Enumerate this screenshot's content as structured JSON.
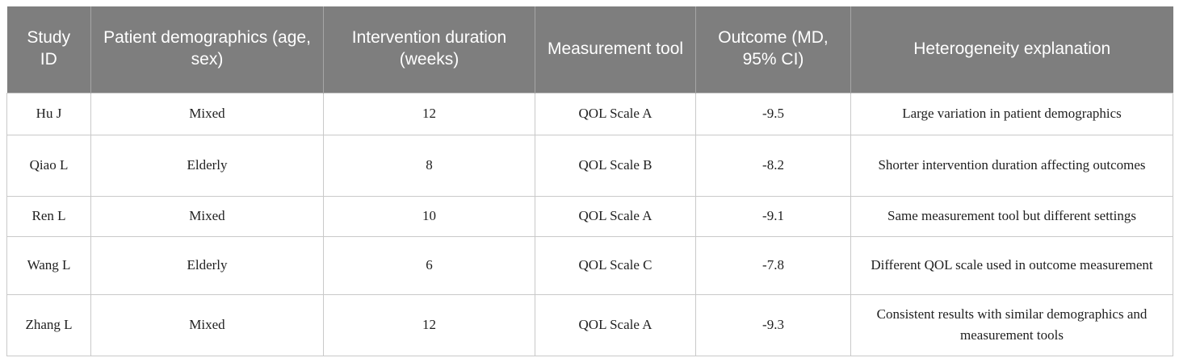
{
  "chart_data": {
    "type": "table",
    "columns": [
      "Study\nID",
      "Patient\ndemographics (age,\nsex)",
      "Intervention\nduration (weeks)",
      "Measurement\ntool",
      "Outcome\n(MD, 95% CI)",
      "Heterogeneity explanation"
    ],
    "rows": [
      [
        "Hu J",
        "Mixed",
        "12",
        "QOL Scale A",
        "-9.5",
        "Large variation in patient demographics"
      ],
      [
        "Qiao L",
        "Elderly",
        "8",
        "QOL Scale B",
        "-8.2",
        "Shorter intervention duration affecting outcomes"
      ],
      [
        "Ren L",
        "Mixed",
        "10",
        "QOL Scale A",
        "-9.1",
        "Same measurement tool but different settings"
      ],
      [
        "Wang L",
        "Elderly",
        "6",
        "QOL Scale C",
        "-7.8",
        "Different QOL scale used in outcome measurement"
      ],
      [
        "Zhang L",
        "Mixed",
        "12",
        "QOL Scale A",
        "-9.3",
        "Consistent results with similar demographics and measurement tools"
      ]
    ],
    "title": "",
    "legend": "none",
    "grid": "full cell borders in body; light separators between header cells"
  },
  "colors": {
    "header_background": "#7e7e7e",
    "header_text": "#ffffff",
    "header_divider": "#a6a6a6",
    "body_border": "#c9c9c9",
    "body_text": "#1f1f1f",
    "page_background": "#ffffff"
  }
}
